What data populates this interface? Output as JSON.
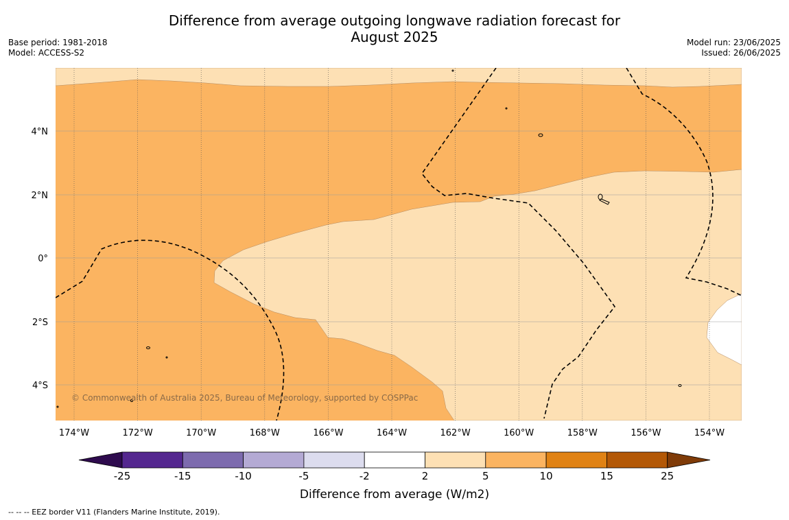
{
  "title": {
    "line1": "Difference from average outgoing longwave radiation forecast for",
    "line2": "August 2025"
  },
  "meta_left": {
    "base_period": "Base period: 1981-2018",
    "model": "Model: ACCESS-S2"
  },
  "meta_right": {
    "model_run": "Model run: 23/06/2025",
    "issued": "Issued: 26/06/2025"
  },
  "map": {
    "lon_labels": [
      "174°W",
      "172°W",
      "170°W",
      "168°W",
      "166°W",
      "164°W",
      "162°W",
      "160°W",
      "158°W",
      "156°W",
      "154°W"
    ],
    "lat_labels": [
      "4°N",
      "2°N",
      "0°",
      "2°S",
      "4°S"
    ],
    "copyright": "© Commonwealth of Australia 2025, Bureau of Meteorology, supported by COSPPac"
  },
  "colorbar": {
    "tick_labels": [
      "-25",
      "-15",
      "-10",
      "-5",
      "-2",
      "2",
      "5",
      "10",
      "15",
      "25"
    ],
    "colors": [
      "#2e0b4e",
      "#54278f",
      "#7d6bae",
      "#b4aad4",
      "#dcdcee",
      "#ffffff",
      "#fde0b4",
      "#fbb461",
      "#e08214",
      "#b35806",
      "#7f3b08"
    ],
    "label": "Difference from average (W/m2)"
  },
  "footnote": "--  --  -- EEZ border V11 (Flanders Marine Institute, 2019)."
}
